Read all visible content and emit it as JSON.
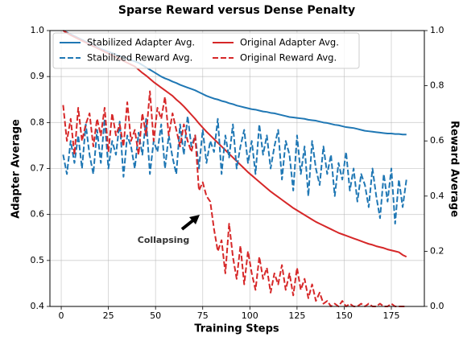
{
  "chart_data": {
    "type": "line",
    "title": "Sparse Reward versus Dense Penalty",
    "xlabel": "Training Steps",
    "ylabel": "Adapter Average",
    "y2label": "Reward Average",
    "annotation": "Collapsing",
    "legend": "upper left",
    "legend_columns": 2,
    "grid": true,
    "xlim": [
      -6,
      192.5
    ],
    "ylim": [
      0.4,
      1.0
    ],
    "y2lim": [
      0,
      1
    ],
    "xticks": [
      0,
      25,
      50,
      75,
      100,
      125,
      150,
      175
    ],
    "yticks": [
      0.4,
      0.5,
      0.6,
      0.7,
      0.8,
      0.9,
      {
        "value": 1.0,
        "label": "1.0"
      }
    ],
    "y2ticks": [
      {
        "value": 0,
        "label": "0.0"
      },
      0.2,
      0.4,
      0.6,
      0.8,
      {
        "value": 1,
        "label": "1.0"
      }
    ],
    "x": [
      1,
      3,
      5,
      7,
      9,
      11,
      13,
      15,
      17,
      19,
      21,
      23,
      25,
      27,
      29,
      31,
      33,
      35,
      37,
      39,
      41,
      43,
      45,
      47,
      49,
      51,
      53,
      55,
      57,
      59,
      61,
      63,
      65,
      67,
      69,
      71,
      73,
      75,
      77,
      79,
      81,
      83,
      85,
      87,
      89,
      91,
      93,
      95,
      97,
      99,
      101,
      103,
      105,
      107,
      109,
      111,
      113,
      115,
      117,
      119,
      121,
      123,
      125,
      127,
      129,
      131,
      133,
      135,
      137,
      139,
      141,
      143,
      145,
      147,
      149,
      151,
      153,
      155,
      157,
      159,
      161,
      163,
      165,
      167,
      169,
      171,
      173,
      175,
      177,
      179,
      181,
      183
    ],
    "series": [
      {
        "name": "Stabilized Adapter Avg.",
        "color": "#1f77b4",
        "style": "solid",
        "axis": "y",
        "values": [
          1.0,
          0.996,
          0.992,
          0.988,
          0.984,
          0.98,
          0.976,
          0.972,
          0.968,
          0.964,
          0.96,
          0.957,
          0.954,
          0.951,
          0.948,
          0.945,
          0.942,
          0.939,
          0.936,
          0.933,
          0.93,
          0.925,
          0.92,
          0.915,
          0.91,
          0.905,
          0.9,
          0.896,
          0.893,
          0.889,
          0.886,
          0.882,
          0.879,
          0.876,
          0.873,
          0.87,
          0.866,
          0.862,
          0.858,
          0.855,
          0.852,
          0.85,
          0.847,
          0.845,
          0.842,
          0.84,
          0.837,
          0.835,
          0.833,
          0.831,
          0.829,
          0.828,
          0.826,
          0.824,
          0.823,
          0.821,
          0.82,
          0.818,
          0.816,
          0.814,
          0.812,
          0.811,
          0.81,
          0.809,
          0.808,
          0.806,
          0.805,
          0.804,
          0.802,
          0.8,
          0.799,
          0.797,
          0.795,
          0.794,
          0.792,
          0.79,
          0.789,
          0.788,
          0.786,
          0.784,
          0.782,
          0.781,
          0.78,
          0.779,
          0.778,
          0.777,
          0.776,
          0.776,
          0.775,
          0.775,
          0.774,
          0.774
        ]
      },
      {
        "name": "Original Adapter Avg.",
        "color": "#d62728",
        "style": "solid",
        "axis": "y",
        "values": [
          1.0,
          0.995,
          0.99,
          0.986,
          0.982,
          0.978,
          0.974,
          0.97,
          0.966,
          0.962,
          0.958,
          0.954,
          0.95,
          0.946,
          0.942,
          0.938,
          0.934,
          0.93,
          0.926,
          0.922,
          0.915,
          0.908,
          0.902,
          0.895,
          0.888,
          0.882,
          0.876,
          0.87,
          0.864,
          0.858,
          0.85,
          0.843,
          0.835,
          0.826,
          0.817,
          0.808,
          0.798,
          0.789,
          0.78,
          0.772,
          0.764,
          0.756,
          0.748,
          0.74,
          0.732,
          0.724,
          0.716,
          0.708,
          0.7,
          0.692,
          0.685,
          0.678,
          0.671,
          0.664,
          0.657,
          0.65,
          0.644,
          0.638,
          0.632,
          0.626,
          0.62,
          0.614,
          0.609,
          0.604,
          0.599,
          0.594,
          0.589,
          0.584,
          0.58,
          0.576,
          0.572,
          0.568,
          0.564,
          0.56,
          0.557,
          0.554,
          0.551,
          0.548,
          0.545,
          0.542,
          0.539,
          0.536,
          0.534,
          0.531,
          0.529,
          0.527,
          0.524,
          0.522,
          0.52,
          0.518,
          0.512,
          0.508
        ]
      },
      {
        "name": "Stabilized Reward Avg.",
        "color": "#1f77b4",
        "style": "dashed",
        "axis": "y2",
        "values": [
          0.55,
          0.48,
          0.6,
          0.52,
          0.62,
          0.5,
          0.66,
          0.55,
          0.48,
          0.64,
          0.52,
          0.68,
          0.5,
          0.6,
          0.55,
          0.67,
          0.47,
          0.62,
          0.58,
          0.5,
          0.63,
          0.55,
          0.68,
          0.48,
          0.6,
          0.56,
          0.66,
          0.5,
          0.62,
          0.54,
          0.48,
          0.66,
          0.55,
          0.69,
          0.58,
          0.62,
          0.5,
          0.64,
          0.52,
          0.6,
          0.56,
          0.68,
          0.48,
          0.62,
          0.54,
          0.66,
          0.5,
          0.58,
          0.64,
          0.52,
          0.6,
          0.48,
          0.66,
          0.55,
          0.62,
          0.5,
          0.58,
          0.64,
          0.46,
          0.6,
          0.55,
          0.42,
          0.62,
          0.48,
          0.58,
          0.4,
          0.6,
          0.5,
          0.44,
          0.58,
          0.48,
          0.55,
          0.4,
          0.52,
          0.46,
          0.56,
          0.42,
          0.5,
          0.38,
          0.48,
          0.44,
          0.36,
          0.5,
          0.4,
          0.32,
          0.48,
          0.38,
          0.5,
          0.3,
          0.46,
          0.36,
          0.46
        ]
      },
      {
        "name": "Original Reward Avg.",
        "color": "#d62728",
        "style": "dashed",
        "axis": "y2",
        "values": [
          0.73,
          0.6,
          0.68,
          0.55,
          0.72,
          0.6,
          0.66,
          0.7,
          0.58,
          0.68,
          0.62,
          0.72,
          0.56,
          0.7,
          0.62,
          0.66,
          0.58,
          0.74,
          0.6,
          0.64,
          0.55,
          0.7,
          0.62,
          0.78,
          0.6,
          0.72,
          0.68,
          0.76,
          0.62,
          0.7,
          0.64,
          0.58,
          0.66,
          0.6,
          0.56,
          0.62,
          0.42,
          0.45,
          0.4,
          0.38,
          0.28,
          0.2,
          0.24,
          0.12,
          0.3,
          0.18,
          0.1,
          0.22,
          0.08,
          0.2,
          0.12,
          0.06,
          0.18,
          0.1,
          0.14,
          0.05,
          0.12,
          0.08,
          0.15,
          0.06,
          0.12,
          0.04,
          0.14,
          0.06,
          0.1,
          0.03,
          0.08,
          0.02,
          0.05,
          0.01,
          0.02,
          0.0,
          0.01,
          0.0,
          0.02,
          0.0,
          0.01,
          0.0,
          0.0,
          0.01,
          0.0,
          0.01,
          0.0,
          0.0,
          0.01,
          0.0,
          0.0,
          0.01,
          0.0,
          0.0,
          0.0,
          0.0
        ]
      }
    ]
  }
}
